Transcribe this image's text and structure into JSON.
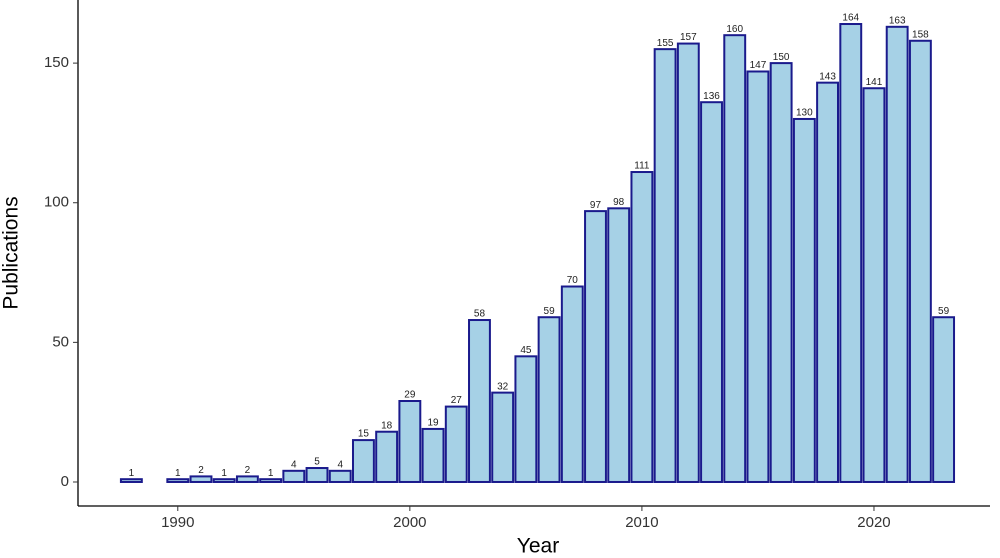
{
  "chart_data": {
    "type": "bar",
    "x": [
      1988,
      1990,
      1991,
      1992,
      1993,
      1994,
      1995,
      1996,
      1997,
      1998,
      1999,
      2000,
      2001,
      2002,
      2003,
      2004,
      2005,
      2006,
      2007,
      2008,
      2009,
      2010,
      2011,
      2012,
      2013,
      2014,
      2015,
      2016,
      2017,
      2018,
      2019,
      2020,
      2021,
      2022,
      2023
    ],
    "values": [
      1,
      1,
      2,
      1,
      2,
      1,
      4,
      5,
      4,
      15,
      18,
      29,
      19,
      27,
      58,
      32,
      45,
      59,
      70,
      97,
      98,
      111,
      155,
      157,
      136,
      160,
      147,
      150,
      130,
      143,
      164,
      141,
      163,
      158,
      59
    ],
    "color": "#a6d1e6",
    "edge_color": "#1a1a8c",
    "xlabel": "Year",
    "ylabel": "Publications",
    "xlim": [
      1985.7,
      2025
    ],
    "xticks": [
      1990,
      2000,
      2010,
      2020
    ],
    "ylim": [
      -8.6,
      172.6
    ],
    "yticks": [
      0,
      50,
      100,
      150
    ],
    "grid": false
  }
}
